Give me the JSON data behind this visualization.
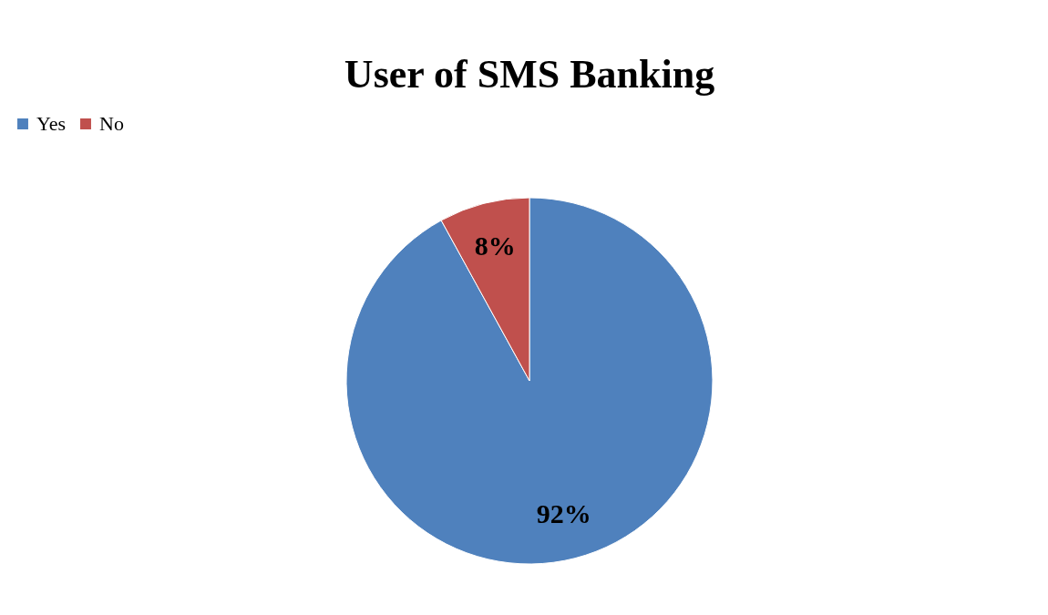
{
  "chart_data": {
    "type": "pie",
    "title": "User of SMS Banking",
    "categories": [
      "Yes",
      "No"
    ],
    "values": [
      92,
      8
    ],
    "colors": [
      "#4f81bd",
      "#c0504d"
    ],
    "value_labels": [
      "92%",
      "8%"
    ],
    "legend": "top"
  }
}
